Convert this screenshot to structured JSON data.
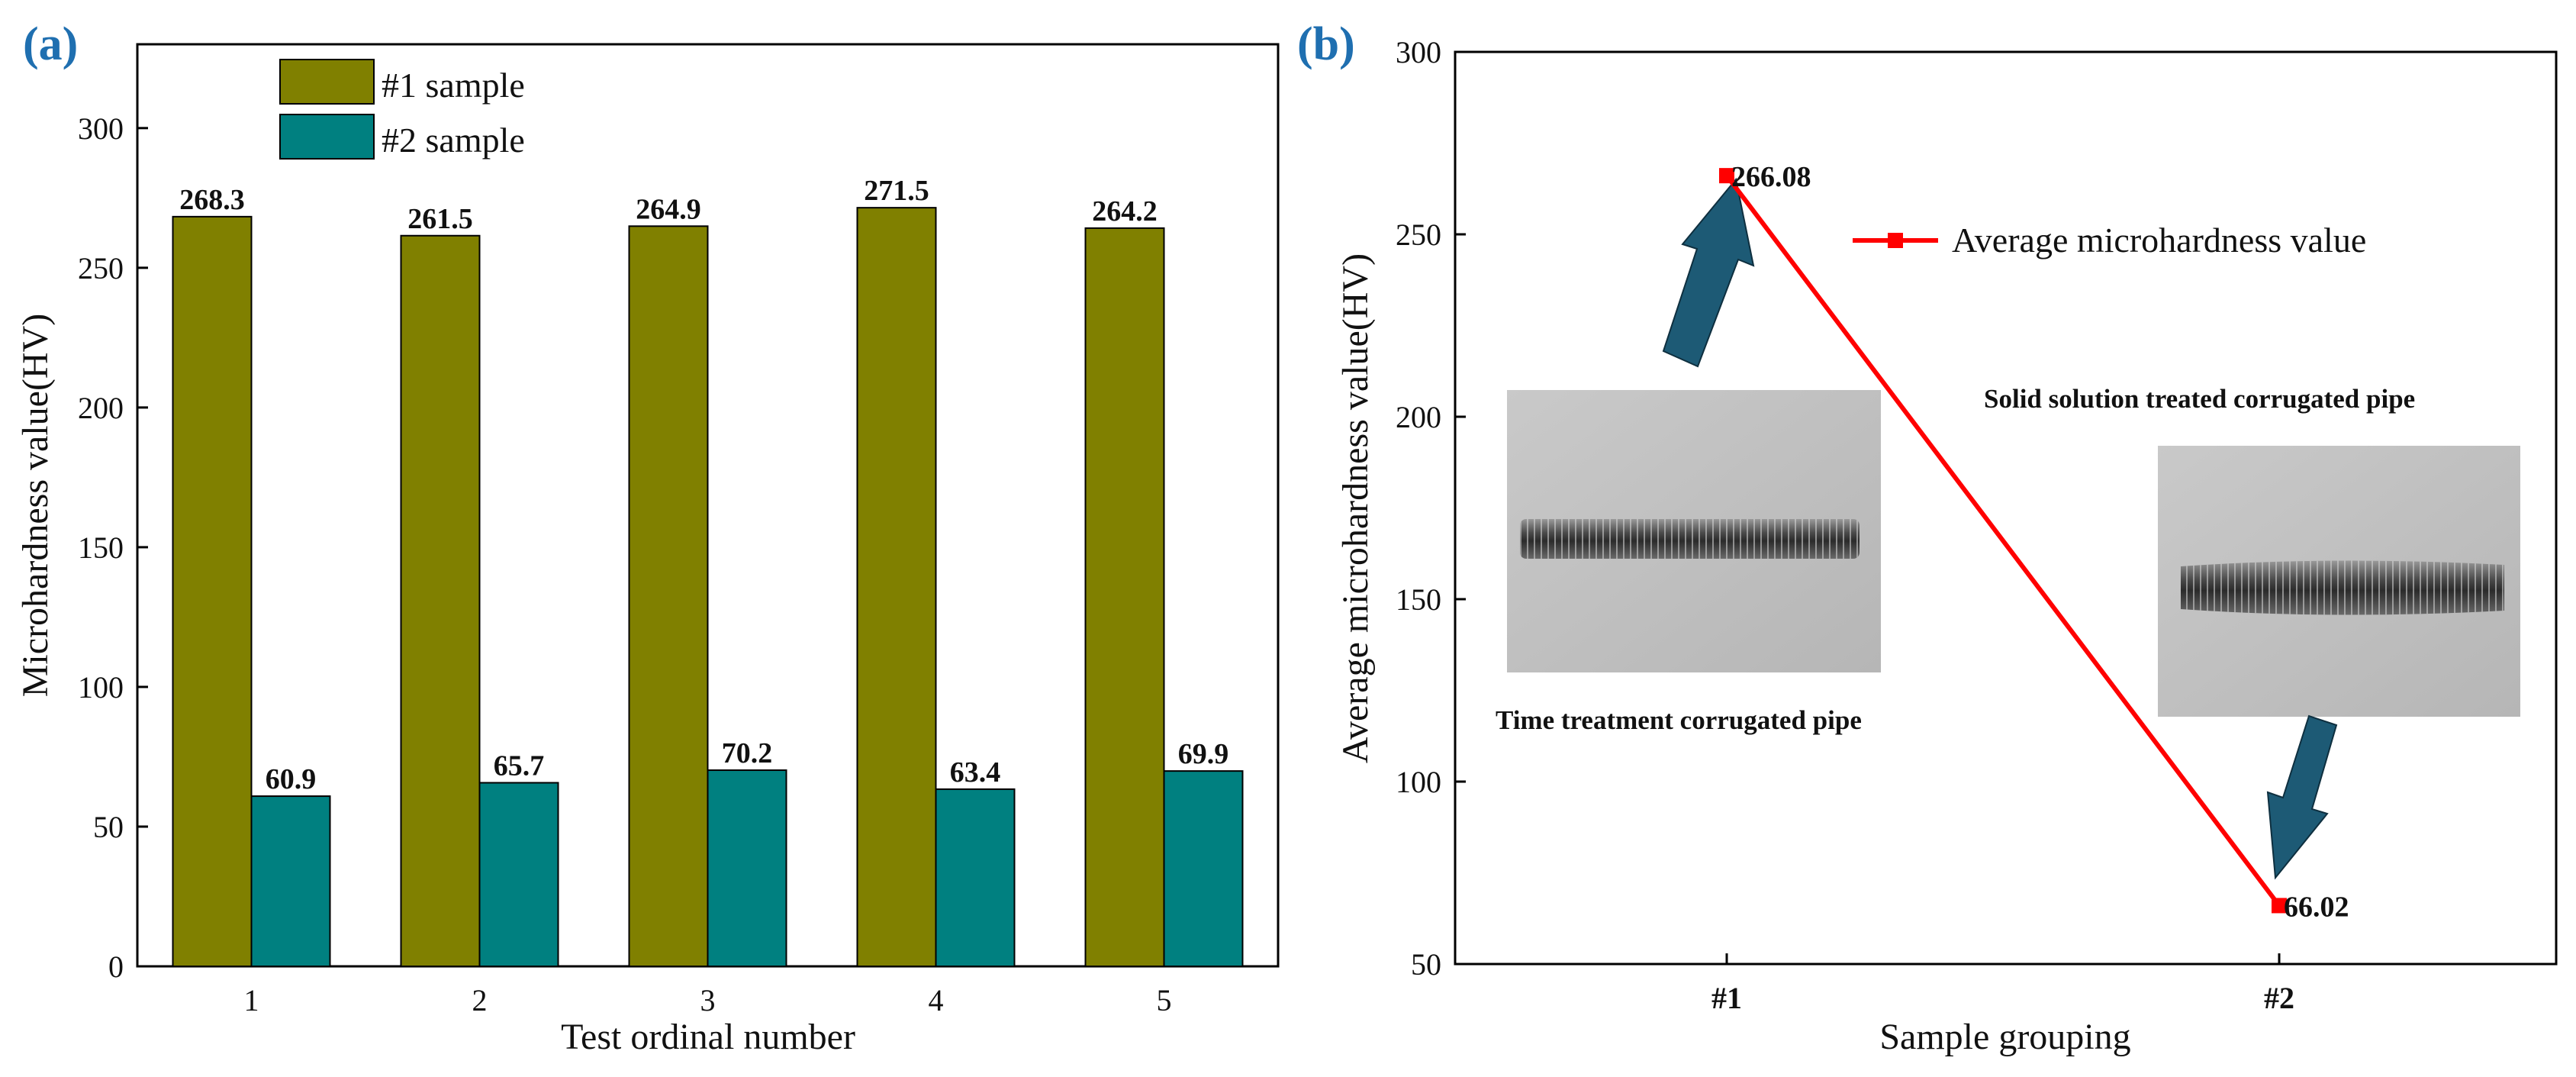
{
  "colors": {
    "series1": "#808000",
    "series2": "#008080",
    "line": "#ff0000",
    "panel_label": "#1f6fb0",
    "arrow_fill": "#1d5a75"
  },
  "chart_data": [
    {
      "panel_label": "(a)",
      "type": "bar",
      "title": "",
      "xlabel": "Test ordinal number",
      "ylabel": "Microhardness value(HV)",
      "ylim": [
        0,
        330
      ],
      "yticks": [
        "0",
        "50",
        "100",
        "150",
        "200",
        "250",
        "300"
      ],
      "categories": [
        "1",
        "2",
        "3",
        "4",
        "5"
      ],
      "series": [
        {
          "name": "#1 sample",
          "values": [
            268.3,
            261.5,
            264.9,
            271.5,
            264.2
          ],
          "labels": [
            "268.3",
            "261.5",
            "264.9",
            "271.5",
            "264.2"
          ]
        },
        {
          "name": "#2 sample",
          "values": [
            60.9,
            65.7,
            70.2,
            63.4,
            69.9
          ],
          "labels": [
            "60.9",
            "65.7",
            "70.2",
            "63.4",
            "69.9"
          ]
        }
      ],
      "legend_position": "top-center"
    },
    {
      "panel_label": "(b)",
      "type": "line",
      "title": "",
      "xlabel": "Sample grouping",
      "ylabel": "Average microhardness value(HV)",
      "ylim": [
        50,
        300
      ],
      "yticks": [
        "50",
        "100",
        "150",
        "200",
        "250",
        "300"
      ],
      "categories": [
        "#1",
        "#2"
      ],
      "series": [
        {
          "name": "Average microhardness value",
          "values": [
            266.08,
            66.02
          ],
          "labels": [
            "266.08",
            "66.02"
          ]
        }
      ],
      "legend_position": "top-right",
      "annotations": {
        "caption_1": "Time treatment corrugated pipe",
        "caption_2": "Solid solution treated corrugated pipe"
      }
    }
  ]
}
